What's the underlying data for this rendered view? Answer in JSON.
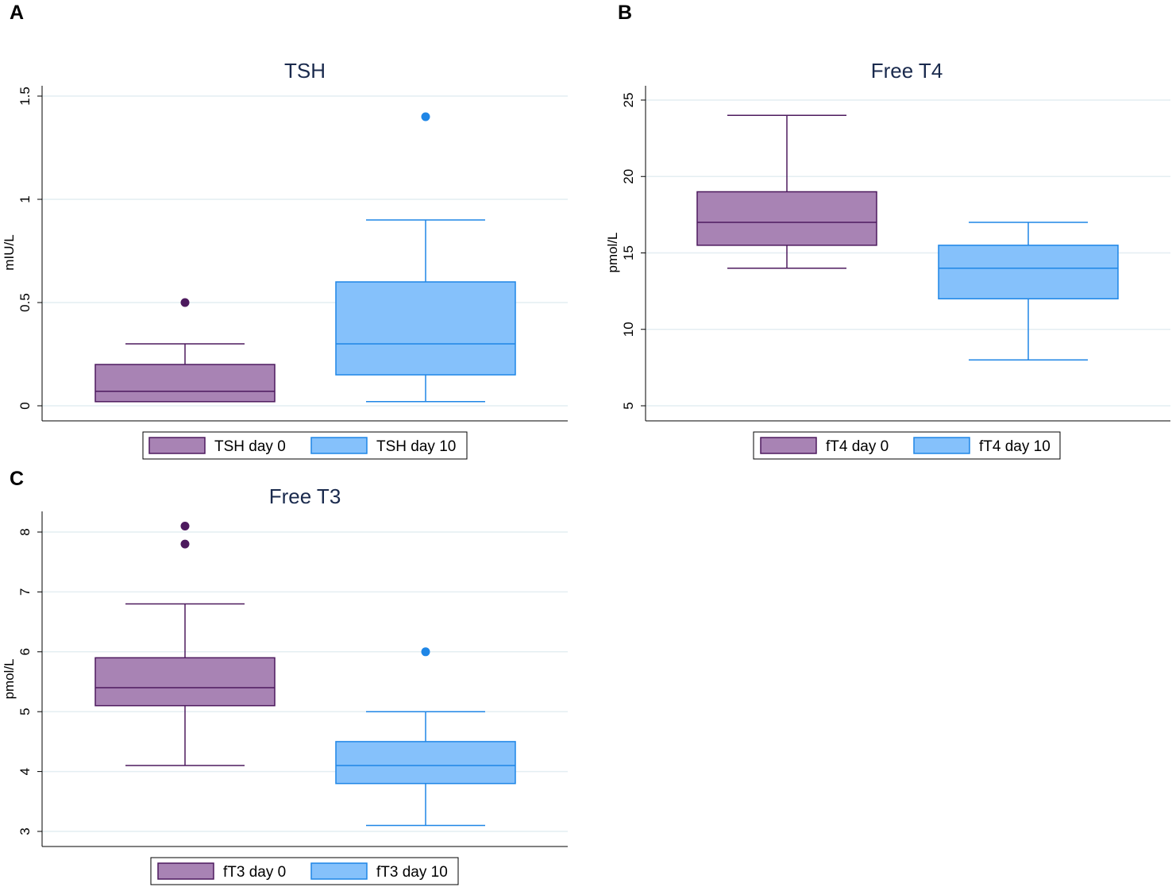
{
  "colors": {
    "day0_fill": "#a883b4",
    "day0_stroke": "#4d1a5e",
    "day10_fill": "#85c1fb",
    "day10_stroke": "#1f86e6",
    "grid": "#e4eef2",
    "axis": "#000000"
  },
  "chart_data": [
    {
      "type": "box",
      "panel": "A",
      "title": "TSH",
      "ylabel": "mIU/L",
      "ylim": [
        0,
        1.5
      ],
      "yticks": [
        0,
        0.5,
        1,
        1.5
      ],
      "ytick_labels": [
        "0",
        "0.5",
        "1",
        "1.5"
      ],
      "series": [
        {
          "name": "TSH day 0",
          "whisker_low": 0.02,
          "q1": 0.02,
          "median": 0.07,
          "q3": 0.2,
          "whisker_high": 0.3,
          "outliers": [
            0.5
          ]
        },
        {
          "name": "TSH day 10",
          "whisker_low": 0.02,
          "q1": 0.15,
          "median": 0.3,
          "q3": 0.6,
          "whisker_high": 0.9,
          "outliers": [
            1.4
          ]
        }
      ]
    },
    {
      "type": "box",
      "panel": "B",
      "title": "Free T4",
      "ylabel": "pmol/L",
      "ylim": [
        5,
        25
      ],
      "yticks": [
        5,
        10,
        15,
        20,
        25
      ],
      "ytick_labels": [
        "5",
        "10",
        "15",
        "20",
        "25"
      ],
      "series": [
        {
          "name": "fT4 day 0",
          "whisker_low": 14,
          "q1": 15.5,
          "median": 17,
          "q3": 19,
          "whisker_high": 24,
          "outliers": []
        },
        {
          "name": "fT4 day 10",
          "whisker_low": 8,
          "q1": 12,
          "median": 14,
          "q3": 15.5,
          "whisker_high": 17,
          "outliers": []
        }
      ]
    },
    {
      "type": "box",
      "panel": "C",
      "title": "Free T3",
      "ylabel": "pmol/L",
      "ylim": [
        3,
        8
      ],
      "yticks": [
        3,
        4,
        5,
        6,
        7,
        8
      ],
      "ytick_labels": [
        "3",
        "4",
        "5",
        "6",
        "7",
        "8"
      ],
      "series": [
        {
          "name": "fT3 day 0",
          "whisker_low": 4.1,
          "q1": 5.1,
          "median": 5.4,
          "q3": 5.9,
          "whisker_high": 6.8,
          "outliers": [
            7.8,
            8.1
          ]
        },
        {
          "name": "fT3 day 10",
          "whisker_low": 3.1,
          "q1": 3.8,
          "median": 4.1,
          "q3": 4.5,
          "whisker_high": 5,
          "outliers": [
            6
          ]
        }
      ]
    }
  ]
}
